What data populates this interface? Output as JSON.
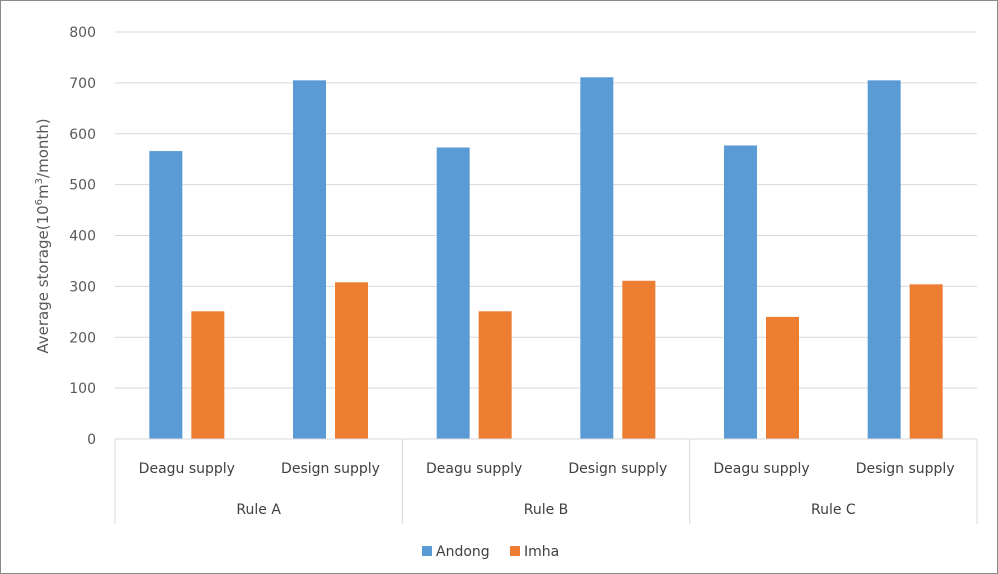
{
  "chart_data": {
    "type": "bar",
    "ylabel_main": "Average storage(10",
    "ylabel_sup": "6",
    "ylabel_tail": "m",
    "ylabel_sup2": "3",
    "ylabel_end": "/month)",
    "ylim": [
      0,
      800
    ],
    "yticks": [
      0,
      100,
      200,
      300,
      400,
      500,
      600,
      700,
      800
    ],
    "grid": true,
    "legend_position": "bottom",
    "groups": [
      "Rule A",
      "Rule B",
      "Rule C"
    ],
    "categories": [
      "Deagu supply",
      "Design supply",
      "Deagu supply",
      "Design supply",
      "Deagu supply",
      "Design supply"
    ],
    "series": [
      {
        "name": "Andong",
        "color": "#5b9bd5",
        "values": [
          566,
          705,
          573,
          711,
          577,
          705
        ]
      },
      {
        "name": "Imha",
        "color": "#ed7d31",
        "values": [
          251,
          308,
          251,
          311,
          240,
          304
        ]
      }
    ]
  }
}
